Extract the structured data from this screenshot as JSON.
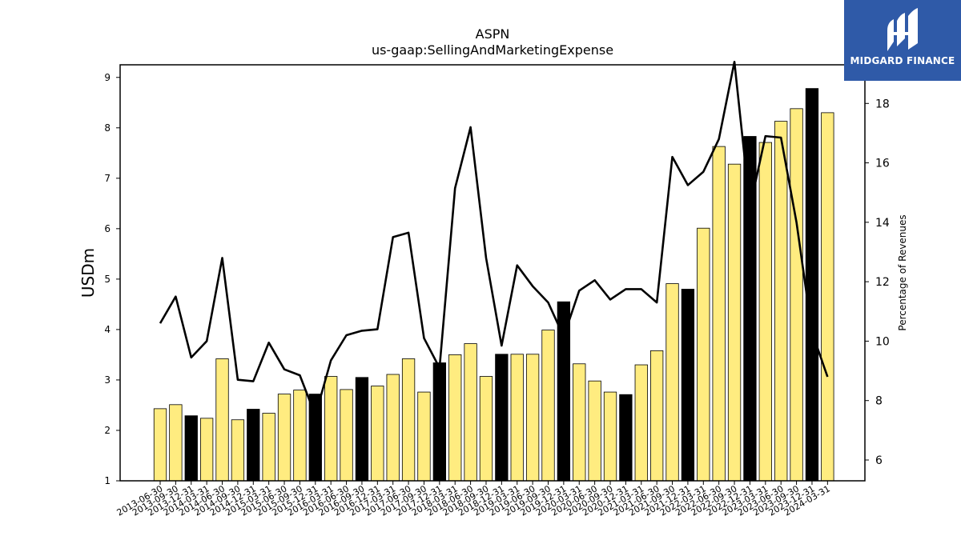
{
  "logo": {
    "text": "MIDGARD FINANCE"
  },
  "colors": {
    "bar_normal": "#ffec80",
    "bar_highlight": "#000000",
    "line": "#000000"
  },
  "chart_data": {
    "type": "bar",
    "title": "ASPN",
    "subtitle": "us-gaap:SellingAndMarketingExpense",
    "ylabel": "USDm",
    "y2label": "Percentage of Revenues",
    "ylim": [
      1,
      9.25
    ],
    "y2lim": [
      5.3,
      19.3
    ],
    "yticks": [
      1,
      2,
      3,
      4,
      5,
      6,
      7,
      8,
      9
    ],
    "y2ticks": [
      6,
      8,
      10,
      12,
      14,
      16,
      18
    ],
    "categories": [
      "2013-06-30",
      "2013-09-30",
      "2013-12-31",
      "2014-03-31",
      "2014-06-30",
      "2014-09-30",
      "2014-12-31",
      "2015-03-31",
      "2015-06-30",
      "2015-09-30",
      "2015-12-31",
      "2016-03-31",
      "2016-06-30",
      "2016-09-30",
      "2016-12-31",
      "2017-03-31",
      "2017-06-30",
      "2017-09-30",
      "2017-12-31",
      "2018-03-31",
      "2018-06-30",
      "2018-09-30",
      "2018-12-31",
      "2019-03-31",
      "2019-06-30",
      "2019-09-30",
      "2019-12-31",
      "2020-03-31",
      "2020-06-30",
      "2020-09-30",
      "2020-12-31",
      "2021-03-31",
      "2021-06-30",
      "2021-09-30",
      "2021-12-31",
      "2022-03-31",
      "2022-06-30",
      "2022-09-30",
      "2022-12-31",
      "2023-03-31",
      "2023-06-30",
      "2023-09-30",
      "2023-12-31",
      "2024-03-31"
    ],
    "series": [
      {
        "type": "bar",
        "values": [
          2.43,
          2.51,
          2.29,
          2.24,
          3.42,
          2.21,
          2.42,
          2.34,
          2.72,
          2.8,
          2.72,
          3.07,
          2.81,
          3.05,
          2.88,
          3.11,
          3.42,
          2.76,
          3.34,
          3.5,
          3.72,
          3.07,
          3.51,
          3.51,
          3.51,
          3.99,
          4.55,
          3.32,
          2.98,
          2.76,
          2.71,
          3.3,
          3.58,
          4.91,
          4.8,
          6.01,
          7.63,
          7.28,
          7.83,
          7.71,
          8.13,
          8.38,
          8.78,
          8.3
        ],
        "highlight": [
          false,
          false,
          true,
          false,
          false,
          false,
          true,
          false,
          false,
          false,
          true,
          false,
          false,
          true,
          false,
          false,
          false,
          false,
          true,
          false,
          false,
          false,
          true,
          false,
          false,
          false,
          true,
          false,
          false,
          false,
          true,
          false,
          false,
          false,
          true,
          false,
          false,
          false,
          true,
          false,
          false,
          false,
          true,
          false
        ]
      },
      {
        "type": "line",
        "axis": "right",
        "values": [
          10.6,
          11.5,
          9.45,
          10.0,
          12.8,
          8.7,
          8.65,
          9.95,
          9.05,
          8.85,
          7.5,
          9.35,
          10.2,
          10.35,
          10.4,
          13.5,
          13.65,
          10.1,
          9.1,
          15.15,
          17.2,
          12.8,
          9.85,
          12.55,
          11.85,
          11.3,
          10.15,
          11.7,
          12.05,
          11.4,
          11.75,
          11.75,
          11.3,
          16.2,
          15.25,
          15.7,
          16.8,
          19.4,
          14.5,
          16.9,
          16.85,
          14.0,
          10.3,
          8.8
        ]
      }
    ]
  }
}
